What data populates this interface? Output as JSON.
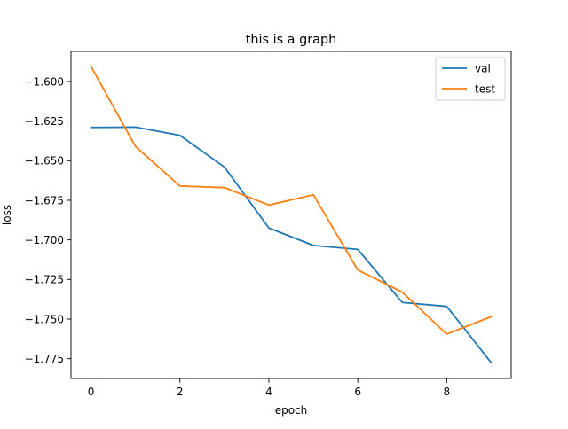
{
  "chart_data": {
    "type": "line",
    "title": "this is a graph",
    "xlabel": "epoch",
    "ylabel": "loss",
    "x": [
      0,
      1,
      2,
      3,
      4,
      5,
      6,
      7,
      8,
      9
    ],
    "xlim": [
      -0.45,
      9.45
    ],
    "ylim": [
      -1.7875,
      -1.581
    ],
    "xticks": [
      0,
      2,
      4,
      6,
      8
    ],
    "xtick_labels": [
      "0",
      "2",
      "4",
      "6",
      "8"
    ],
    "yticks": [
      -1.6,
      -1.625,
      -1.65,
      -1.675,
      -1.7,
      -1.725,
      -1.75,
      -1.775
    ],
    "ytick_labels": [
      "−1.600",
      "−1.625",
      "−1.650",
      "−1.675",
      "−1.700",
      "−1.725",
      "−1.750",
      "−1.775"
    ],
    "grid": false,
    "legend_position": "top-right",
    "series": [
      {
        "name": "val",
        "color": "#1f77b4",
        "values": [
          -1.629,
          -1.6288,
          -1.634,
          -1.654,
          -1.6925,
          -1.7035,
          -1.706,
          -1.7395,
          -1.742,
          -1.7775
        ]
      },
      {
        "name": "test",
        "color": "#ff7f0e",
        "values": [
          -1.5905,
          -1.641,
          -1.666,
          -1.667,
          -1.678,
          -1.6715,
          -1.719,
          -1.733,
          -1.7595,
          -1.7485
        ]
      }
    ]
  }
}
